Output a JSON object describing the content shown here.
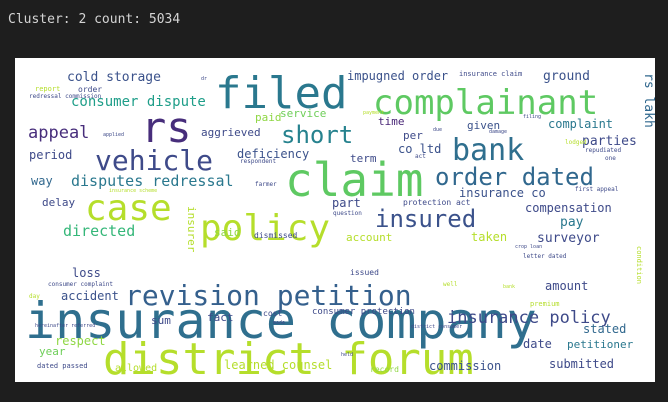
{
  "cell_output": {
    "text": "Cluster: 2 count: 5034"
  },
  "wordcloud": {
    "words": [
      {
        "text": "insurance company",
        "color": "#2f6f8e"
      },
      {
        "text": "district forum",
        "color": "#b5de2b"
      },
      {
        "text": "claim",
        "color": "#5ec962"
      },
      {
        "text": "complainant",
        "color": "#5ec962"
      },
      {
        "text": "filed",
        "color": "#2a788e"
      },
      {
        "text": "rs",
        "color": "#472d7b"
      },
      {
        "text": "policy",
        "color": "#b5de2b"
      },
      {
        "text": "case",
        "color": "#b5de2b"
      },
      {
        "text": "revision petition",
        "color": "#35608d"
      },
      {
        "text": "vehicle",
        "color": "#3e4a89"
      },
      {
        "text": "bank",
        "color": "#2f6f8e"
      },
      {
        "text": "order dated",
        "color": "#31688e"
      },
      {
        "text": "insured",
        "color": "#3b528b"
      },
      {
        "text": "short",
        "color": "#26828e"
      },
      {
        "text": "insurance policy",
        "color": "#3e4a89"
      },
      {
        "text": "consumer dispute",
        "color": "#1f9e89"
      },
      {
        "text": "appeal",
        "color": "#472d7b"
      },
      {
        "text": "disputes redressal",
        "color": "#2a788e"
      },
      {
        "text": "directed",
        "color": "#35b779"
      },
      {
        "text": "cold storage",
        "color": "#3b528b"
      },
      {
        "text": "impugned order",
        "color": "#3b528b"
      },
      {
        "text": "ground",
        "color": "#3b528b"
      },
      {
        "text": "aggrieved",
        "color": "#3e4a89"
      },
      {
        "text": "deficiency",
        "color": "#3b528b"
      },
      {
        "text": "paid",
        "color": "#8fd744"
      },
      {
        "text": "service",
        "color": "#6ece58"
      },
      {
        "text": "time",
        "color": "#482576"
      },
      {
        "text": "given",
        "color": "#3b528b"
      },
      {
        "text": "per",
        "color": "#3e4a89"
      },
      {
        "text": "complaint",
        "color": "#2a788e"
      },
      {
        "text": "rs lakh",
        "color": "#31688e"
      },
      {
        "text": "parties",
        "color": "#3e4a89"
      },
      {
        "text": "co ltd",
        "color": "#3b528b"
      },
      {
        "text": "term",
        "color": "#3e4a89"
      },
      {
        "text": "period",
        "color": "#3e4a89"
      },
      {
        "text": "way",
        "color": "#31688e"
      },
      {
        "text": "insurance co",
        "color": "#3b528b"
      },
      {
        "text": "compensation",
        "color": "#3e4a89"
      },
      {
        "text": "part",
        "color": "#3e4a89"
      },
      {
        "text": "pay",
        "color": "#2a788e"
      },
      {
        "text": "surveyor",
        "color": "#3e4a89"
      },
      {
        "text": "delay",
        "color": "#3e4a89"
      },
      {
        "text": "said",
        "color": "#8fd744"
      },
      {
        "text": "account",
        "color": "#b5de2b"
      },
      {
        "text": "taken",
        "color": "#b5de2b"
      },
      {
        "text": "amount",
        "color": "#3e4a89"
      },
      {
        "text": "loss",
        "color": "#3e4a89"
      },
      {
        "text": "accident",
        "color": "#3b528b"
      },
      {
        "text": "sum",
        "color": "#3e4a89"
      },
      {
        "text": "fact",
        "color": "#3e4a89"
      },
      {
        "text": "consumer protection",
        "color": "#3e4a89"
      },
      {
        "text": "date",
        "color": "#3e4a89"
      },
      {
        "text": "petitioner",
        "color": "#2a788e"
      },
      {
        "text": "stated",
        "color": "#31688e"
      },
      {
        "text": "respect",
        "color": "#8fd744"
      },
      {
        "text": "year",
        "color": "#6ece58"
      },
      {
        "text": "learned counsel",
        "color": "#b5de2b"
      },
      {
        "text": "commission",
        "color": "#3b528b"
      },
      {
        "text": "submitted",
        "color": "#3e4a89"
      },
      {
        "text": "allowed",
        "color": "#b5de2b"
      },
      {
        "text": "dated passed",
        "color": "#3e4a89"
      },
      {
        "text": "issued",
        "color": "#3e4a89"
      },
      {
        "text": "cost",
        "color": "#3e4a89"
      },
      {
        "text": "record",
        "color": "#8fd744"
      },
      {
        "text": "dismissed",
        "color": "#3e4a89"
      },
      {
        "text": "insurer",
        "color": "#b5de2b"
      },
      {
        "text": "protection act",
        "color": "#3e4a89"
      },
      {
        "text": "respondent",
        "color": "#3e4a89"
      },
      {
        "text": "first appeal",
        "color": "#3e4a89"
      },
      {
        "text": "order",
        "color": "#3e4a89"
      },
      {
        "text": "report",
        "color": "#b5de2b"
      },
      {
        "text": "redressal commission",
        "color": "#3e4a89"
      },
      {
        "text": "insurance claim",
        "color": "#3e4a89"
      },
      {
        "text": "lodged",
        "color": "#b5de2b"
      },
      {
        "text": "repudiated",
        "color": "#3e4a89"
      },
      {
        "text": "one",
        "color": "#3e4a89"
      },
      {
        "text": "condition",
        "color": "#b5de2b"
      },
      {
        "text": "premium",
        "color": "#b5de2b"
      },
      {
        "text": "question",
        "color": "#3e4a89"
      },
      {
        "text": "letter dated",
        "color": "#3e4a89"
      },
      {
        "text": "consumer complaint",
        "color": "#3e4a89"
      },
      {
        "text": "insurance scheme",
        "color": "#b5de2b"
      },
      {
        "text": "farmer",
        "color": "#3e4a89"
      },
      {
        "text": "payment",
        "color": "#b5de2b"
      },
      {
        "text": "due",
        "color": "#3e4a89"
      },
      {
        "text": "filing",
        "color": "#3e4a89"
      },
      {
        "text": "damage",
        "color": "#3e4a89"
      },
      {
        "text": "act",
        "color": "#3e4a89"
      },
      {
        "text": "crop loan",
        "color": "#3e4a89"
      },
      {
        "text": "well",
        "color": "#b5de2b"
      },
      {
        "text": "made",
        "color": "#3e4a89"
      },
      {
        "text": "held",
        "color": "#3e4a89"
      },
      {
        "text": "district consumer",
        "color": "#3e4a89"
      },
      {
        "text": "hereinafter referred",
        "color": "#3e4a89"
      },
      {
        "text": "day",
        "color": "#b5de2b"
      },
      {
        "text": "applied",
        "color": "#3e4a89"
      },
      {
        "text": "dr",
        "color": "#3e4a89"
      },
      {
        "text": "bank",
        "color": "#b5de2b"
      }
    ]
  }
}
